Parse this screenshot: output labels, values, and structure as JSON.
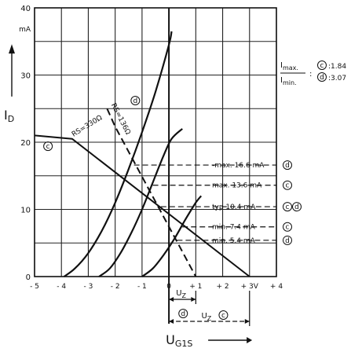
{
  "chart_data": {
    "type": "line",
    "xlabel": "U",
    "xlabel_sub": "G1S",
    "ylabel": "I",
    "ylabel_sub": "D",
    "y_unit": "mA",
    "xlim": [
      -5,
      4
    ],
    "ylim": [
      0,
      40
    ],
    "x_ticks": [
      -5,
      -4,
      -3,
      -2,
      -1,
      0,
      1,
      2,
      3,
      4
    ],
    "x_tick_labels": [
      "- 5",
      "- 4",
      "- 3",
      "- 2",
      "- 1",
      "0",
      "+ 1",
      "+ 2",
      "+ 3V",
      "+ 4"
    ],
    "y_ticks": [
      0,
      10,
      20,
      30,
      40
    ],
    "y_tick_labels": [
      "0",
      "10",
      "20",
      "30",
      "40"
    ],
    "grid": true,
    "series": [
      {
        "name": "transfer curve (max)",
        "points": [
          [
            -3.9,
            0
          ],
          [
            -3.5,
            1.2
          ],
          [
            -3,
            3.5
          ],
          [
            -2.5,
            6.8
          ],
          [
            -2,
            11
          ],
          [
            -1.5,
            16
          ],
          [
            -1,
            21.5
          ],
          [
            -0.5,
            27.5
          ],
          [
            0,
            34.5
          ],
          [
            0.1,
            36.5
          ]
        ]
      },
      {
        "name": "transfer curve (typ)",
        "points": [
          [
            -2.6,
            0
          ],
          [
            -2.2,
            1.2
          ],
          [
            -1.8,
            3.5
          ],
          [
            -1.4,
            6.5
          ],
          [
            -1,
            10
          ],
          [
            -0.6,
            14
          ],
          [
            -0.2,
            18
          ],
          [
            0.1,
            20.5
          ],
          [
            0.5,
            22
          ]
        ]
      },
      {
        "name": "transfer curve (min)",
        "points": [
          [
            -1.0,
            0
          ],
          [
            -0.6,
            1.2
          ],
          [
            -0.2,
            3.2
          ],
          [
            0.2,
            5.6
          ],
          [
            0.6,
            8.4
          ],
          [
            1.0,
            11
          ],
          [
            1.2,
            12
          ]
        ]
      }
    ],
    "load_lines": [
      {
        "name": "RS = 330 Ω",
        "label": "RS=330Ω",
        "circle": "c",
        "points": [
          [
            -5,
            21
          ],
          [
            -3.6,
            20.5
          ],
          [
            3,
            0
          ]
        ]
      },
      {
        "name": "RS = 136 Ω",
        "label": "RS=136Ω",
        "circle": "d",
        "points": [
          [
            -2.3,
            25
          ],
          [
            -2,
            22.3
          ],
          [
            1,
            0
          ]
        ]
      }
    ],
    "levels": [
      {
        "label": "max. 16.6 mA",
        "prefix": "-",
        "value": 16.6,
        "circle": "d",
        "from_x": -1.3
      },
      {
        "label": "max. 13.6 mA",
        "value": 13.6,
        "circle": "c",
        "from_x": -0.6
      },
      {
        "label": "typ  10.4 mA",
        "value": 10.4,
        "circle": "c d",
        "from_x": -0.3
      },
      {
        "label": "min.  7.4 mA",
        "value": 7.4,
        "circle": "c",
        "from_x": 0.5
      },
      {
        "label": "min.  5.4 mA",
        "value": 5.4,
        "circle": "d",
        "from_x": 0.3
      }
    ],
    "ratio": {
      "numerator": "I",
      "numerator_sub": "max.",
      "denominator": "I",
      "denominator_sub": "min.",
      "entries": [
        {
          "circle": "c",
          "value": "1.84"
        },
        {
          "circle": "d",
          "value": "3.07"
        }
      ]
    },
    "spans": [
      {
        "label": "U",
        "label_sub": "Z",
        "circle": "d",
        "from": 0,
        "to": 1
      },
      {
        "label": "U",
        "label_sub": "Z",
        "circle": "c",
        "from": 0,
        "to": 3
      }
    ]
  }
}
